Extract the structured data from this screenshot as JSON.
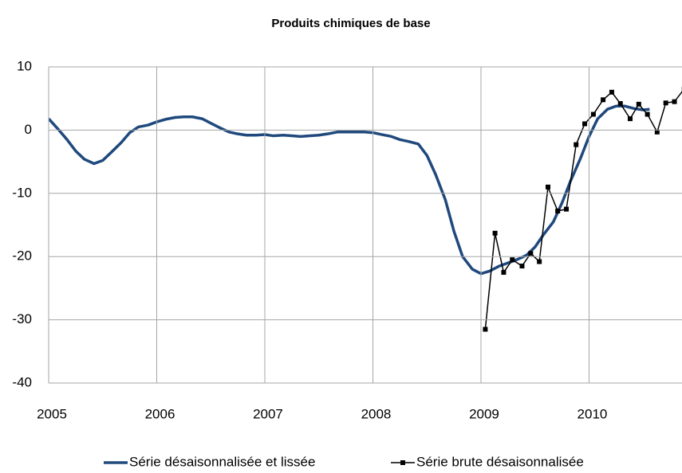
{
  "chart_data": {
    "type": "line",
    "title": "Produits chimiques de base",
    "xlim": [
      2005,
      2010.86
    ],
    "xticks": [
      2005,
      2006,
      2007,
      2008,
      2009,
      2010
    ],
    "ylim": [
      -40,
      10
    ],
    "yticks": [
      10,
      0,
      -10,
      -20,
      -30,
      -40
    ],
    "grid": true,
    "legend": "bottom",
    "series": [
      {
        "name": "Série désaisonnalisée et lissée",
        "color": "#1f497d",
        "marker": "none",
        "x": [
          2005,
          2005.08,
          2005.17,
          2005.25,
          2005.33,
          2005.42,
          2005.5,
          2005.58,
          2005.67,
          2005.75,
          2005.83,
          2005.92,
          2006,
          2006.08,
          2006.17,
          2006.25,
          2006.33,
          2006.42,
          2006.5,
          2006.58,
          2006.67,
          2006.75,
          2006.83,
          2006.92,
          2007,
          2007.08,
          2007.17,
          2007.25,
          2007.33,
          2007.42,
          2007.5,
          2007.58,
          2007.67,
          2007.75,
          2007.83,
          2007.92,
          2008,
          2008.08,
          2008.17,
          2008.25,
          2008.33,
          2008.42,
          2008.5,
          2008.58,
          2008.67,
          2008.75,
          2008.83,
          2008.92,
          2009,
          2009.08,
          2009.17,
          2009.25,
          2009.33,
          2009.42,
          2009.5,
          2009.58,
          2009.67,
          2009.75,
          2009.83,
          2009.92,
          2010,
          2010.08,
          2010.17,
          2010.25,
          2010.33,
          2010.42,
          2010.5,
          2010.56
        ],
        "values": [
          1.8,
          0.3,
          -1.5,
          -3.3,
          -4.6,
          -5.3,
          -4.8,
          -3.5,
          -2,
          -0.4,
          0.5,
          0.8,
          1.3,
          1.7,
          2.0,
          2.1,
          2.1,
          1.8,
          1.1,
          0.4,
          -0.3,
          -0.6,
          -0.8,
          -0.8,
          -0.7,
          -0.9,
          -0.8,
          -0.9,
          -1.0,
          -0.9,
          -0.8,
          -0.6,
          -0.3,
          -0.3,
          -0.3,
          -0.3,
          -0.4,
          -0.7,
          -1.0,
          -1.5,
          -1.8,
          -2.2,
          -4,
          -7,
          -11,
          -16,
          -20,
          -22,
          -22.7,
          -22.3,
          -21.5,
          -21,
          -20.5,
          -19.8,
          -18.5,
          -16.5,
          -14.5,
          -11.5,
          -8,
          -4.5,
          -1,
          1.8,
          3.3,
          3.8,
          3.8,
          3.4,
          3.2,
          3.3
        ]
      },
      {
        "name": "Série brute désaisonnalisée",
        "color": "#000000",
        "marker": "square",
        "x": [
          2009.04,
          2009.13,
          2009.21,
          2009.29,
          2009.38,
          2009.46,
          2009.54,
          2009.62,
          2009.71,
          2009.79,
          2009.88,
          2009.96,
          2010.04,
          2010.13,
          2010.21,
          2010.29,
          2010.38,
          2010.46,
          2010.54,
          2010.63,
          2010.71,
          2010.79,
          2010.88
        ],
        "values": [
          -31.5,
          -16.3,
          -22.5,
          -20.5,
          -21.5,
          -19.5,
          -20.8,
          -9,
          -12.8,
          -12.5,
          -2.3,
          1,
          2.5,
          4.8,
          6,
          4.2,
          1.8,
          4.1,
          2.5,
          -0.3,
          4.3,
          4.5,
          6.5
        ]
      }
    ]
  }
}
